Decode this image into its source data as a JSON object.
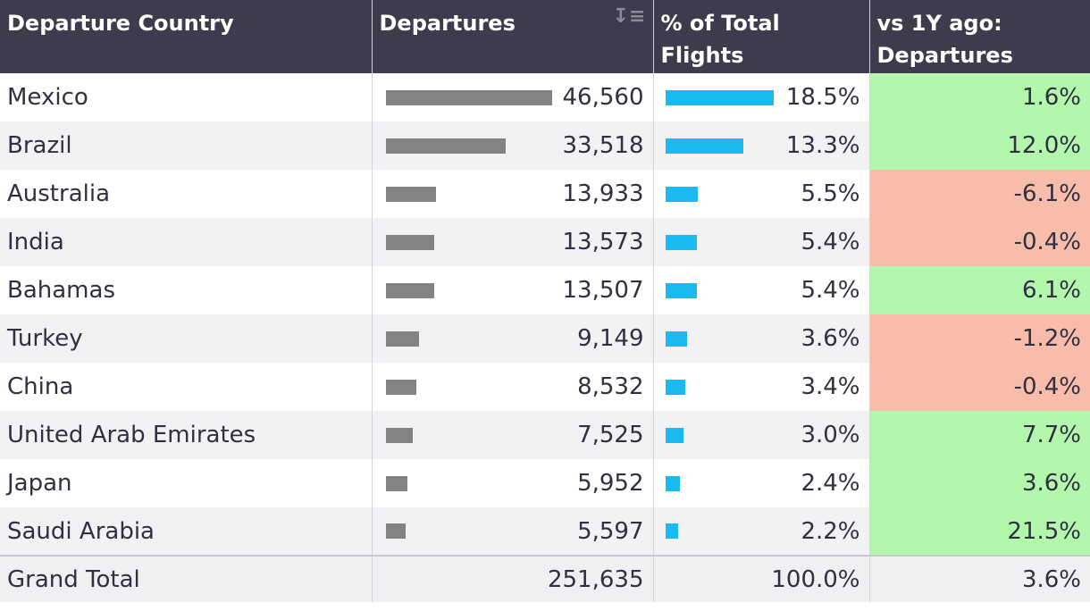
{
  "headers": {
    "country": "Departure Country",
    "departures": "Departures",
    "pct_total": "% of Total Flights",
    "vs_1y": "vs 1Y ago: Departures",
    "sort_icon": "sort-descending-icon"
  },
  "colors": {
    "header_bg": "#3c3c4c",
    "bar_gray": "#838383",
    "bar_blue": "#1ab9f0",
    "positive": "#b3f7ac",
    "negative": "#f8bcab"
  },
  "rows": [
    {
      "country": "Mexico",
      "departures": "46,560",
      "departures_value": 46560,
      "pct": "18.5%",
      "pct_value": 18.5,
      "change": "1.6%",
      "change_value": 1.6
    },
    {
      "country": "Brazil",
      "departures": "33,518",
      "departures_value": 33518,
      "pct": "13.3%",
      "pct_value": 13.3,
      "change": "12.0%",
      "change_value": 12.0
    },
    {
      "country": "Australia",
      "departures": "13,933",
      "departures_value": 13933,
      "pct": "5.5%",
      "pct_value": 5.5,
      "change": "-6.1%",
      "change_value": -6.1
    },
    {
      "country": "India",
      "departures": "13,573",
      "departures_value": 13573,
      "pct": "5.4%",
      "pct_value": 5.4,
      "change": "-0.4%",
      "change_value": -0.4
    },
    {
      "country": "Bahamas",
      "departures": "13,507",
      "departures_value": 13507,
      "pct": "5.4%",
      "pct_value": 5.4,
      "change": "6.1%",
      "change_value": 6.1
    },
    {
      "country": "Turkey",
      "departures": "9,149",
      "departures_value": 9149,
      "pct": "3.6%",
      "pct_value": 3.6,
      "change": "-1.2%",
      "change_value": -1.2
    },
    {
      "country": "China",
      "departures": "8,532",
      "departures_value": 8532,
      "pct": "3.4%",
      "pct_value": 3.4,
      "change": "-0.4%",
      "change_value": -0.4
    },
    {
      "country": "United Arab Emirates",
      "departures": "7,525",
      "departures_value": 7525,
      "pct": "3.0%",
      "pct_value": 3.0,
      "change": "7.7%",
      "change_value": 7.7
    },
    {
      "country": "Japan",
      "departures": "5,952",
      "departures_value": 5952,
      "pct": "2.4%",
      "pct_value": 2.4,
      "change": "3.6%",
      "change_value": 3.6
    },
    {
      "country": "Saudi Arabia",
      "departures": "5,597",
      "departures_value": 5597,
      "pct": "2.2%",
      "pct_value": 2.2,
      "change": "21.5%",
      "change_value": 21.5
    }
  ],
  "total": {
    "label": "Grand Total",
    "departures": "251,635",
    "pct": "100.0%",
    "change": "3.6%"
  }
}
